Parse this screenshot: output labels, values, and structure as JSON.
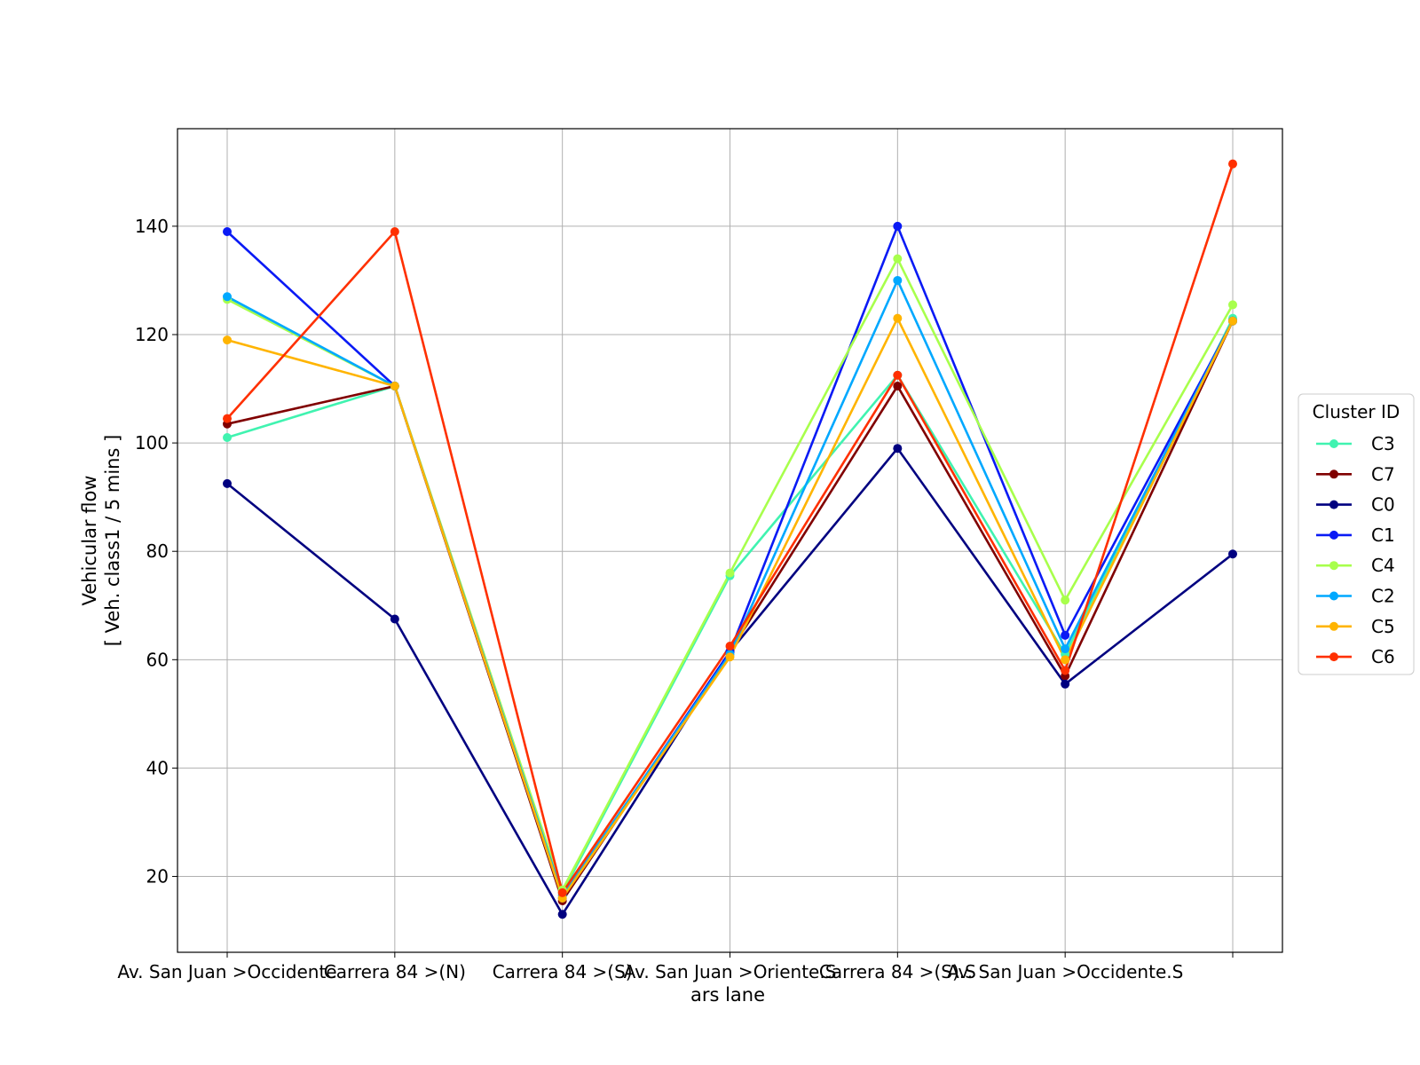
{
  "chart_data": {
    "type": "line",
    "xlabel": "ars lane",
    "ylabel_line1": "Vehicular flow",
    "ylabel_line2": "[ Veh. class1 / 5 mins ]",
    "categories": [
      "Av. San Juan >Occidente",
      "Carrera 84 >(N)",
      "Carrera 84 >(S)",
      "Av. San Juan >Oriente.S",
      "Carrera 84 >(S).S",
      "Av. San Juan >Occidente.S",
      ""
    ],
    "ylim": [
      6,
      158
    ],
    "yticks": [
      20,
      40,
      60,
      80,
      100,
      120,
      140
    ],
    "grid": true,
    "legend": {
      "title": "Cluster ID",
      "placement": "center-right outside"
    },
    "series": [
      {
        "name": "C3",
        "color": "#40f3b0",
        "values": [
          101,
          110.5,
          17,
          75.5,
          112.5,
          61,
          123
        ]
      },
      {
        "name": "C7",
        "color": "#800000",
        "values": [
          103.5,
          110.5,
          15.5,
          61.5,
          110.5,
          57,
          122.5
        ]
      },
      {
        "name": "C0",
        "color": "#000080",
        "values": [
          92.5,
          67.5,
          13,
          61.5,
          99,
          55.5,
          79.5
        ]
      },
      {
        "name": "C1",
        "color": "#0a1af5",
        "values": [
          139,
          110.5,
          16,
          61.5,
          140,
          64.5,
          122.5
        ]
      },
      {
        "name": "C4",
        "color": "#a8ff4c",
        "values": [
          126.5,
          110.5,
          17.5,
          76,
          134,
          71,
          125.5
        ]
      },
      {
        "name": "C2",
        "color": "#00a8ff",
        "values": [
          127,
          110.5,
          16.5,
          61,
          130,
          62,
          122.5
        ]
      },
      {
        "name": "C5",
        "color": "#ffb400",
        "values": [
          119,
          110.5,
          16,
          60.5,
          123,
          60,
          122.5
        ]
      },
      {
        "name": "C6",
        "color": "#ff3000",
        "values": [
          104.5,
          139,
          17,
          62.5,
          112.5,
          58,
          151.5
        ]
      }
    ]
  }
}
